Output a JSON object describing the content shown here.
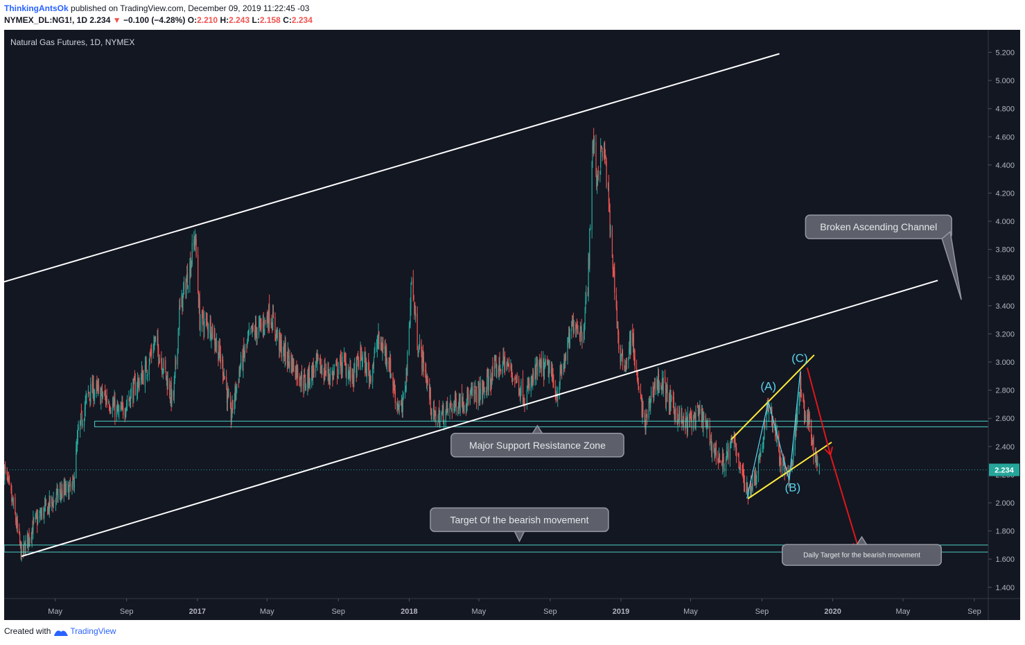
{
  "header": {
    "author": "ThinkingAntsOk",
    "published": "published on TradingView.com, December 09, 2019 11:22:45 -03",
    "symbol": "NYMEX_DL:NG1!, 1D",
    "last": "2.234",
    "change": "−0.100 (−4.28%)",
    "o_label": "O:",
    "o_value": "2.210",
    "h_label": "H:",
    "h_value": "2.243",
    "l_label": "L:",
    "l_value": "2.158",
    "c_label": "C:",
    "c_value": "2.234"
  },
  "footer": {
    "created_with": "Created with",
    "brand": "TradingView"
  },
  "colors": {
    "background": "#131722",
    "up": "#26a69a",
    "down": "#ef5350",
    "channel": "#ffffff",
    "flag": "#ffeb3b",
    "zone": "#4dd0c4",
    "arrow": "#e0161b",
    "wave": "#5ad3ec",
    "label_bg": "#5d606b",
    "axis_text": "#b2b5be"
  },
  "chart_data": {
    "type": "candlestick",
    "title": "Natural Gas Futures, 1D, NYMEX",
    "ylim": [
      1.32,
      5.36
    ],
    "y_ticks": [
      1.4,
      1.6,
      1.8,
      2.0,
      2.2,
      2.4,
      2.6,
      2.8,
      3.0,
      3.2,
      3.4,
      3.6,
      3.8,
      4.0,
      4.2,
      4.4,
      4.6,
      4.8,
      5.0,
      5.2
    ],
    "x_range": [
      "2016-02-03",
      "2020-09-25"
    ],
    "x_ticks": [
      {
        "date": "2016-05-01",
        "label": "May"
      },
      {
        "date": "2016-09-01",
        "label": "Sep"
      },
      {
        "date": "2017-01-01",
        "label": "2017"
      },
      {
        "date": "2017-05-01",
        "label": "May"
      },
      {
        "date": "2017-09-01",
        "label": "Sep"
      },
      {
        "date": "2018-01-01",
        "label": "2018"
      },
      {
        "date": "2018-05-01",
        "label": "May"
      },
      {
        "date": "2018-09-01",
        "label": "Sep"
      },
      {
        "date": "2019-01-01",
        "label": "2019"
      },
      {
        "date": "2019-05-01",
        "label": "May"
      },
      {
        "date": "2019-09-01",
        "label": "Sep"
      },
      {
        "date": "2020-01-01",
        "label": "2020"
      },
      {
        "date": "2020-05-01",
        "label": "May"
      },
      {
        "date": "2020-09-01",
        "label": "Sep"
      }
    ],
    "last_price": 2.234,
    "last_price_label": "2.234",
    "price_path": [
      [
        "2016-02-03",
        2.24
      ],
      [
        "2016-02-20",
        1.95
      ],
      [
        "2016-03-04",
        1.63
      ],
      [
        "2016-03-25",
        1.85
      ],
      [
        "2016-04-20",
        1.98
      ],
      [
        "2016-05-10",
        2.07
      ],
      [
        "2016-05-31",
        2.1
      ],
      [
        "2016-06-10",
        2.5
      ],
      [
        "2016-06-27",
        2.78
      ],
      [
        "2016-07-07",
        2.8
      ],
      [
        "2016-08-01",
        2.73
      ],
      [
        "2016-08-20",
        2.62
      ],
      [
        "2016-09-12",
        2.8
      ],
      [
        "2016-10-03",
        2.93
      ],
      [
        "2016-10-20",
        3.15
      ],
      [
        "2016-11-05",
        2.95
      ],
      [
        "2016-11-20",
        2.7
      ],
      [
        "2016-12-01",
        3.35
      ],
      [
        "2016-12-20",
        3.7
      ],
      [
        "2016-12-28",
        3.9
      ],
      [
        "2017-01-05",
        3.3
      ],
      [
        "2017-01-25",
        3.25
      ],
      [
        "2017-02-15",
        2.95
      ],
      [
        "2017-02-27",
        2.6
      ],
      [
        "2017-03-15",
        2.95
      ],
      [
        "2017-04-03",
        3.2
      ],
      [
        "2017-04-22",
        3.25
      ],
      [
        "2017-05-06",
        3.35
      ],
      [
        "2017-05-25",
        3.1
      ],
      [
        "2017-06-15",
        2.98
      ],
      [
        "2017-07-05",
        2.85
      ],
      [
        "2017-07-25",
        2.98
      ],
      [
        "2017-08-20",
        2.9
      ],
      [
        "2017-09-10",
        3.0
      ],
      [
        "2017-09-25",
        2.88
      ],
      [
        "2017-10-10",
        3.05
      ],
      [
        "2017-10-25",
        2.9
      ],
      [
        "2017-11-08",
        3.15
      ],
      [
        "2017-11-25",
        3.05
      ],
      [
        "2017-12-10",
        2.72
      ],
      [
        "2017-12-20",
        2.65
      ],
      [
        "2017-12-29",
        3.0
      ],
      [
        "2018-01-05",
        3.6
      ],
      [
        "2018-01-15",
        3.15
      ],
      [
        "2018-01-28",
        2.95
      ],
      [
        "2018-02-12",
        2.6
      ],
      [
        "2018-03-01",
        2.63
      ],
      [
        "2018-03-25",
        2.72
      ],
      [
        "2018-04-15",
        2.75
      ],
      [
        "2018-05-10",
        2.8
      ],
      [
        "2018-05-30",
        2.95
      ],
      [
        "2018-06-15",
        3.0
      ],
      [
        "2018-07-01",
        2.9
      ],
      [
        "2018-07-20",
        2.75
      ],
      [
        "2018-08-10",
        2.95
      ],
      [
        "2018-08-30",
        2.95
      ],
      [
        "2018-09-12",
        2.78
      ],
      [
        "2018-10-01",
        3.1
      ],
      [
        "2018-10-12",
        3.3
      ],
      [
        "2018-10-27",
        3.2
      ],
      [
        "2018-11-05",
        3.55
      ],
      [
        "2018-11-14",
        4.6
      ],
      [
        "2018-11-20",
        4.3
      ],
      [
        "2018-12-01",
        4.55
      ],
      [
        "2018-12-08",
        4.3
      ],
      [
        "2018-12-14",
        3.9
      ],
      [
        "2018-12-22",
        3.5
      ],
      [
        "2018-12-30",
        3.0
      ],
      [
        "2019-01-10",
        3.0
      ],
      [
        "2019-01-20",
        3.2
      ],
      [
        "2019-01-29",
        2.85
      ],
      [
        "2019-02-12",
        2.55
      ],
      [
        "2019-02-25",
        2.82
      ],
      [
        "2019-03-10",
        2.87
      ],
      [
        "2019-03-28",
        2.7
      ],
      [
        "2019-04-20",
        2.55
      ],
      [
        "2019-05-06",
        2.6
      ],
      [
        "2019-05-20",
        2.62
      ],
      [
        "2019-06-10",
        2.38
      ],
      [
        "2019-06-25",
        2.28
      ],
      [
        "2019-07-05",
        2.35
      ],
      [
        "2019-07-15",
        2.45
      ],
      [
        "2019-08-05",
        2.08
      ],
      [
        "2019-08-20",
        2.18
      ],
      [
        "2019-09-03",
        2.45
      ],
      [
        "2019-09-12",
        2.7
      ],
      [
        "2019-09-25",
        2.5
      ],
      [
        "2019-10-03",
        2.27
      ],
      [
        "2019-10-17",
        2.2
      ],
      [
        "2019-10-25",
        2.35
      ],
      [
        "2019-11-01",
        2.7
      ],
      [
        "2019-11-06",
        2.85
      ],
      [
        "2019-11-13",
        2.62
      ],
      [
        "2019-11-22",
        2.55
      ],
      [
        "2019-12-02",
        2.33
      ],
      [
        "2019-12-09",
        2.234
      ]
    ],
    "trendlines": [
      {
        "name": "channel-upper",
        "from": [
          "2016-02-03",
          3.57
        ],
        "to": [
          "2019-10-01",
          5.19
        ],
        "color": "#ffffff"
      },
      {
        "name": "channel-lower",
        "from": [
          "2016-03-04",
          1.62
        ],
        "to": [
          "2020-06-30",
          3.58
        ],
        "color": "#ffffff"
      },
      {
        "name": "flag-upper",
        "from": [
          "2019-07-10",
          2.45
        ],
        "to": [
          "2019-11-30",
          3.05
        ],
        "color": "#ffeb3b"
      },
      {
        "name": "flag-lower",
        "from": [
          "2019-08-08",
          2.03
        ],
        "to": [
          "2019-12-30",
          2.43
        ],
        "color": "#ffeb3b"
      }
    ],
    "zones": [
      {
        "name": "major-support-resistance-zone",
        "from": "2016-07-08",
        "y": [
          2.54,
          2.58
        ]
      },
      {
        "name": "target-zone",
        "from": "2016-02-03",
        "y": [
          1.65,
          1.7
        ]
      }
    ],
    "wave_lines": [
      [
        [
          "2019-08-06",
          2.03
        ],
        [
          "2019-09-12",
          2.72
        ],
        [
          "2019-10-18",
          2.16
        ],
        [
          "2019-11-06",
          2.93
        ]
      ]
    ],
    "arrows": [
      {
        "from": [
          "2019-11-18",
          2.96
        ],
        "to": [
          "2019-12-28",
          2.34
        ]
      },
      {
        "from": [
          "2019-12-28",
          2.34
        ],
        "to": [
          "2020-02-15",
          1.67
        ]
      }
    ],
    "wave_labels": [
      {
        "text": "(A)",
        "at": [
          "2019-09-12",
          2.8
        ]
      },
      {
        "text": "(B)",
        "at": [
          "2019-10-24",
          2.08
        ]
      },
      {
        "text": "(C)",
        "at": [
          "2019-11-05",
          3.0
        ]
      }
    ],
    "callouts": [
      {
        "text": "Broken Ascending Channel",
        "at": [
          "2020-03-20",
          3.96
        ],
        "pointer": "right-down"
      },
      {
        "text": "Major Support Resistance Zone",
        "at": [
          "2018-08-10",
          2.41
        ],
        "pointer": "up"
      },
      {
        "text": "Target Of the bearish movement",
        "at": [
          "2018-07-10",
          1.88
        ],
        "pointer": "down"
      },
      {
        "text": "Daily Target for the bearish movement",
        "at": [
          "2020-02-20",
          1.63
        ],
        "pointer": "up"
      }
    ]
  }
}
